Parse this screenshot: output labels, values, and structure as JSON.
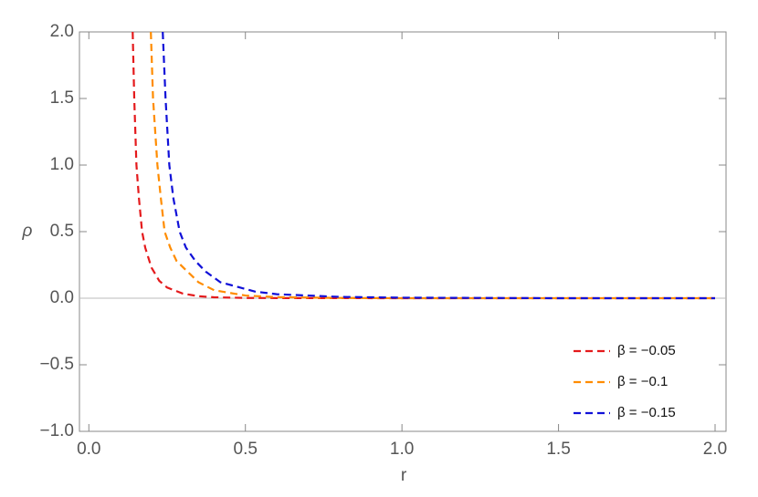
{
  "chart_data": {
    "type": "line",
    "x_label": "r",
    "y_label": "ρ",
    "xlim": [
      -0.03,
      2.035
    ],
    "ylim": [
      -1,
      2
    ],
    "xticks": [
      {
        "value": 0,
        "label": "0.0"
      },
      0.5,
      {
        "value": 1,
        "label": "1.0"
      },
      1.5,
      {
        "value": 2,
        "label": "2.0"
      }
    ],
    "yticks": [
      {
        "value": -1,
        "label": "−1.0"
      },
      {
        "value": -0.5,
        "label": "−0.5"
      },
      {
        "value": 0,
        "label": "0.0"
      },
      0.5,
      {
        "value": 1,
        "label": "1.0"
      },
      1.5,
      {
        "value": 2,
        "label": "2.0"
      }
    ],
    "legend_position": "lower right",
    "series": [
      {
        "name": "β = −0.05",
        "color": "#e41a1c",
        "x": [
          0.14,
          0.145,
          0.152,
          0.16,
          0.17,
          0.18,
          0.2,
          0.225,
          0.25,
          0.3,
          0.35,
          0.4,
          0.5,
          0.6,
          1.0,
          2.0
        ],
        "values": [
          2.0,
          1.5,
          1.0,
          0.75,
          0.5,
          0.38,
          0.23,
          0.13,
          0.08,
          0.035,
          0.015,
          0.007,
          0.002,
          0.001,
          0,
          0
        ]
      },
      {
        "name": "β = −0.1",
        "color": "#ff8c00",
        "x": [
          0.198,
          0.205,
          0.219,
          0.23,
          0.242,
          0.26,
          0.28,
          0.315,
          0.35,
          0.4,
          0.5,
          0.6,
          0.8,
          1.0,
          2.0
        ],
        "values": [
          2.0,
          1.5,
          1.0,
          0.75,
          0.5,
          0.38,
          0.28,
          0.2,
          0.12,
          0.06,
          0.02,
          0.008,
          0.002,
          0,
          0
        ]
      },
      {
        "name": "β = −0.15",
        "color": "#1010d8",
        "x": [
          0.236,
          0.245,
          0.257,
          0.27,
          0.29,
          0.31,
          0.34,
          0.373,
          0.42,
          0.53,
          0.6,
          0.8,
          1.0,
          1.5,
          2.0
        ],
        "values": [
          2.0,
          1.5,
          1.0,
          0.75,
          0.5,
          0.38,
          0.28,
          0.2,
          0.12,
          0.05,
          0.03,
          0.01,
          0.004,
          0,
          0
        ]
      }
    ]
  }
}
